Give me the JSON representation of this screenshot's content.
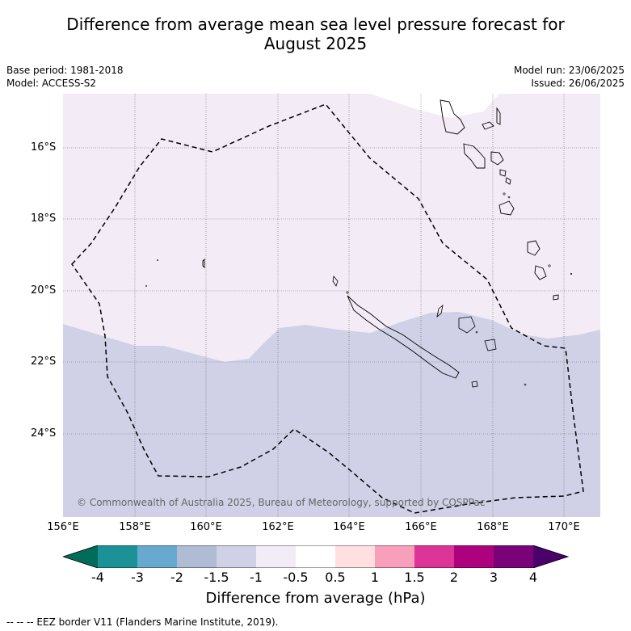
{
  "title_line1": "Difference from average mean sea level pressure forecast for",
  "title_line2": "August 2025",
  "base_period": "Base period: 1981-2018",
  "model": "Model: ACCESS-S2",
  "model_run": "Model run: 23/06/2025",
  "issued": "Issued: 26/06/2025",
  "copyright": "© Commonwealth of Australia 2025, Bureau of Meteorology, supported by COSPPac",
  "footer_note": "--  --  -- EEZ border V11 (Flanders Marine Institute, 2019).",
  "map": {
    "lon_range": [
      156,
      171
    ],
    "lat_range": [
      -26.0,
      -14.5
    ],
    "lat_ticks": [
      "16°S",
      "18°S",
      "20°S",
      "22°S",
      "24°S"
    ],
    "lon_ticks": [
      "156°E",
      "158°E",
      "160°E",
      "162°E",
      "164°E",
      "166°E",
      "168°E",
      "170°E"
    ],
    "region_colors": {
      "-1.5 to -1": "#d0d1e6",
      "-1 to -0.5": "#f3ecf6"
    }
  },
  "colorbar": {
    "title": "Difference from average (hPa)",
    "labels": [
      "-4",
      "-3",
      "-2",
      "-1.5",
      "-1",
      "-0.5",
      "0.5",
      "1",
      "1.5",
      "2",
      "3",
      "4"
    ],
    "colors": [
      "#1a9296",
      "#67a9cf",
      "#b0bcd4",
      "#d0d1e6",
      "#f3ecf6",
      "#ffffff",
      "#ffdfe0",
      "#f89fbb",
      "#dd3497",
      "#ae017e",
      "#7a0177"
    ],
    "extend_low_color": "#016c59",
    "extend_high_color": "#49006a"
  }
}
